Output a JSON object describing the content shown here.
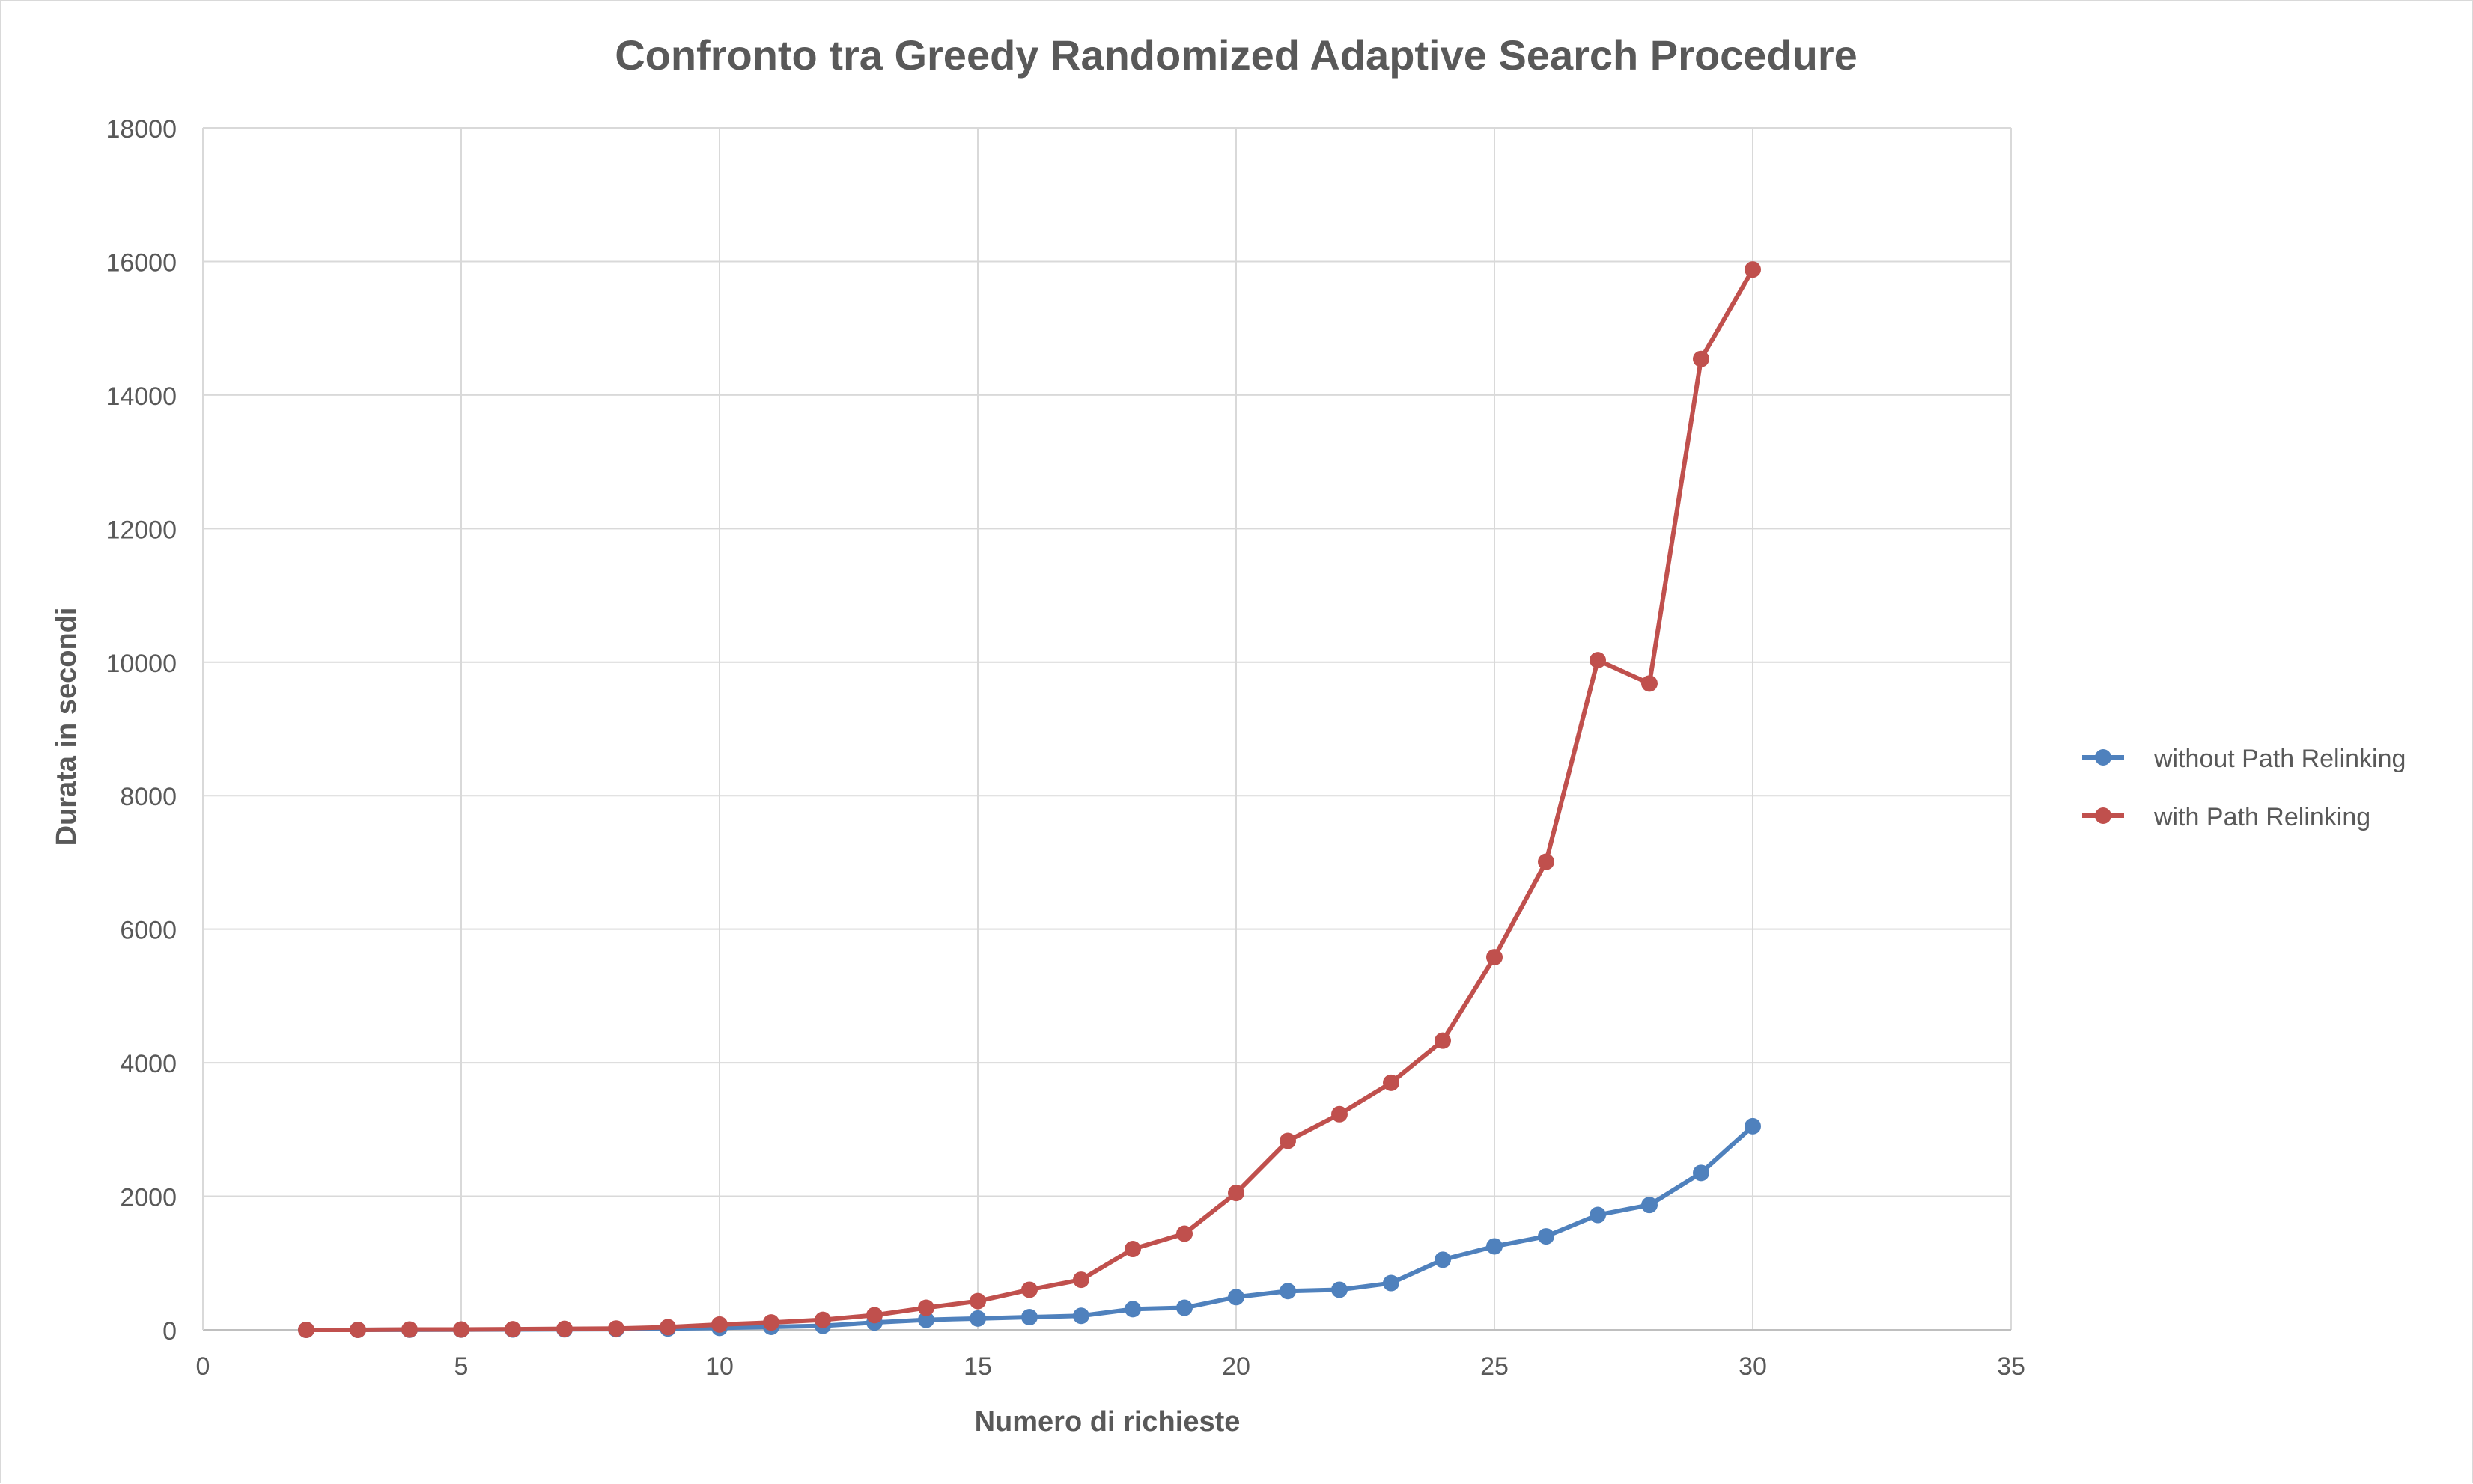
{
  "chart_data": {
    "type": "line",
    "title": "Confronto tra Greedy Randomized Adaptive Search Procedure",
    "xlabel": "Numero di richieste",
    "ylabel": "Durata in secondi",
    "xlim": [
      0,
      35
    ],
    "ylim": [
      0,
      18000
    ],
    "x_ticks": [
      0,
      5,
      10,
      15,
      20,
      25,
      30,
      35
    ],
    "y_ticks": [
      0,
      2000,
      4000,
      6000,
      8000,
      10000,
      12000,
      14000,
      16000,
      18000
    ],
    "grid": true,
    "legend_position": "right",
    "x": [
      2,
      3,
      4,
      5,
      6,
      7,
      8,
      9,
      10,
      11,
      12,
      13,
      14,
      15,
      16,
      17,
      18,
      19,
      20,
      21,
      22,
      23,
      24,
      25,
      26,
      27,
      28,
      29,
      30
    ],
    "series": [
      {
        "name": "without Path Relinking",
        "color": "#4f81bd",
        "values": [
          0,
          0,
          2,
          3,
          5,
          8,
          10,
          20,
          30,
          45,
          60,
          110,
          150,
          170,
          190,
          210,
          310,
          330,
          490,
          580,
          600,
          700,
          1050,
          1250,
          1400,
          1720,
          1870,
          2350,
          3050
        ]
      },
      {
        "name": "with Path Relinking",
        "color": "#c0504d",
        "values": [
          0,
          0,
          5,
          5,
          10,
          15,
          20,
          40,
          80,
          110,
          150,
          220,
          330,
          430,
          600,
          750,
          1210,
          1440,
          2050,
          2830,
          3230,
          3700,
          4330,
          5580,
          7010,
          10030,
          9680,
          14540,
          15880
        ]
      }
    ]
  }
}
